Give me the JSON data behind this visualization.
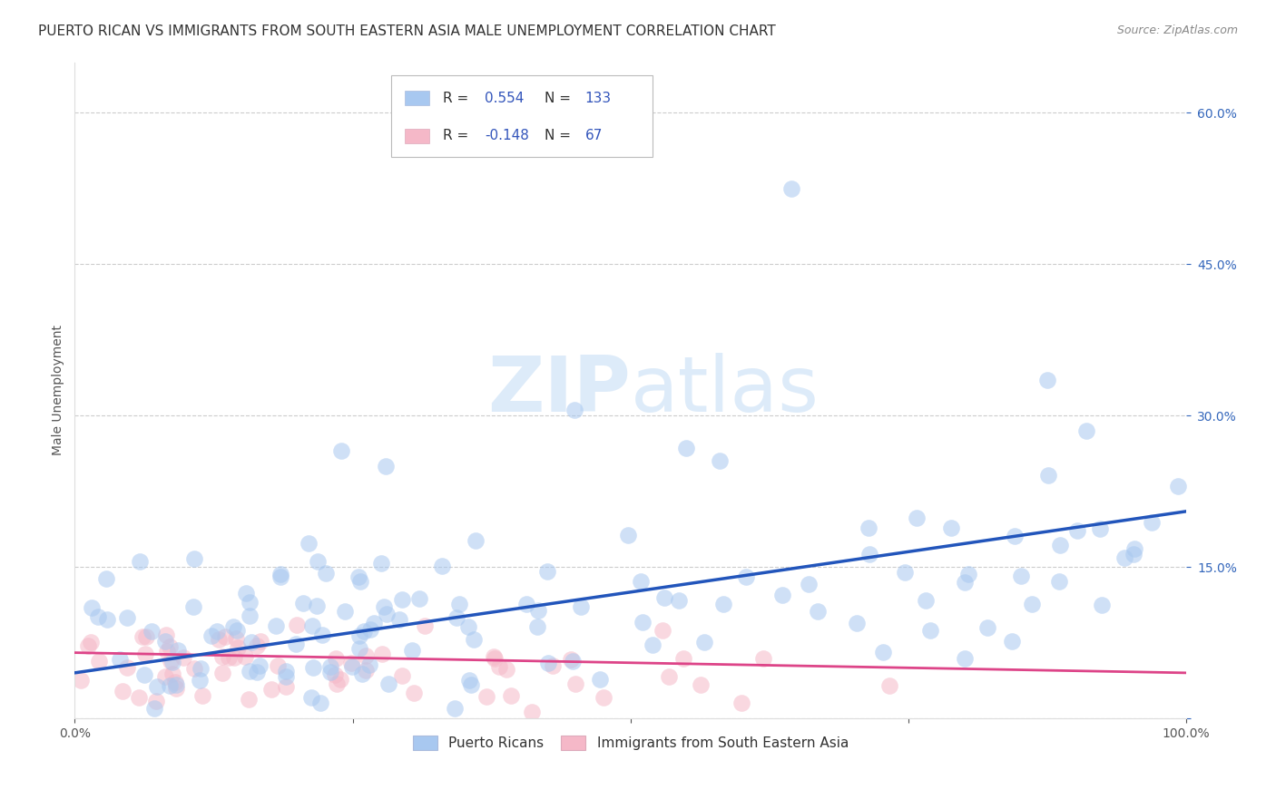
{
  "title": "PUERTO RICAN VS IMMIGRANTS FROM SOUTH EASTERN ASIA MALE UNEMPLOYMENT CORRELATION CHART",
  "source": "Source: ZipAtlas.com",
  "ylabel": "Male Unemployment",
  "xlim": [
    0,
    1
  ],
  "ylim": [
    0,
    0.65
  ],
  "blue_R": 0.554,
  "blue_N": 133,
  "pink_R": -0.148,
  "pink_N": 67,
  "blue_color": "#A8C8F0",
  "pink_color": "#F5B8C8",
  "blue_line_color": "#2255BB",
  "pink_line_color": "#DD4488",
  "background_color": "#FFFFFF",
  "grid_color": "#CCCCCC",
  "title_fontsize": 11,
  "axis_label_fontsize": 10,
  "blue_trend_start": 0.045,
  "blue_trend_end": 0.205,
  "pink_trend_start": 0.065,
  "pink_trend_end": 0.045
}
